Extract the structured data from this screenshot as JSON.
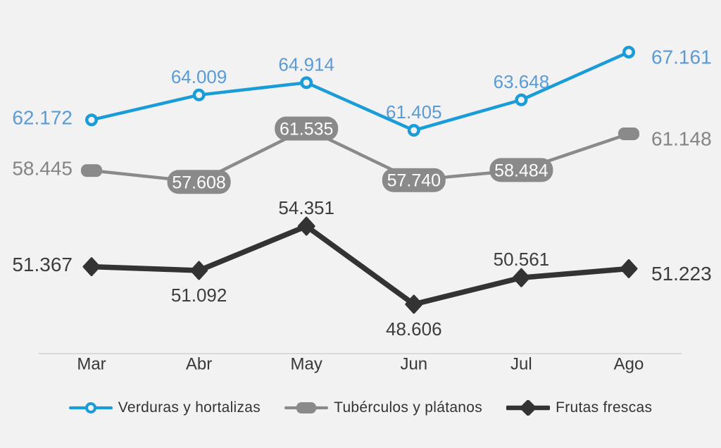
{
  "chart_data": {
    "type": "line",
    "categories": [
      "Mar",
      "Abr",
      "May",
      "Jun",
      "Jul",
      "Ago"
    ],
    "series": [
      {
        "name": "Verduras y hortalizas",
        "color": "#199cd8",
        "label_color": "#5b9bd5",
        "marker": "open-circle",
        "values": [
          62172,
          64009,
          64914,
          61405,
          63648,
          67161
        ],
        "labels": [
          "62.172",
          "64.009",
          "64.914",
          "61.405",
          "63.648",
          "67.161"
        ],
        "label_positions": [
          "left",
          "above",
          "above",
          "above",
          "above",
          "right"
        ]
      },
      {
        "name": "Tubérculos y plátanos",
        "color": "#8a8a8a",
        "label_color": "#848484",
        "badge_text_color": "#ffffff",
        "marker": "rounded-rect",
        "values": [
          58445,
          57608,
          61535,
          57740,
          58484,
          61148
        ],
        "labels": [
          "58.445",
          "57.608",
          "61.535",
          "57.740",
          "58.484",
          "61.148"
        ],
        "label_positions": [
          "left",
          "badge",
          "badge",
          "badge",
          "badge",
          "right"
        ]
      },
      {
        "name": "Frutas frescas",
        "color": "#333333",
        "label_color": "#3d3d3d",
        "marker": "diamond",
        "values": [
          51367,
          51092,
          54351,
          48606,
          50561,
          51223
        ],
        "labels": [
          "51.367",
          "51.092",
          "54.351",
          "48.606",
          "50.561",
          "51.223"
        ],
        "label_positions": [
          "left",
          "below",
          "above",
          "below",
          "above",
          "right"
        ]
      }
    ],
    "title": "",
    "xlabel": "",
    "ylabel": "",
    "grid": false,
    "legend_position": "bottom",
    "value_format": "es-ES thousands (e.g. 62.172 = 62172)",
    "background_color": "#f2f2f2",
    "axis_line_color": "#d9d9d9",
    "tick_label_color": "#383838",
    "legend_text_color": "#333333"
  }
}
